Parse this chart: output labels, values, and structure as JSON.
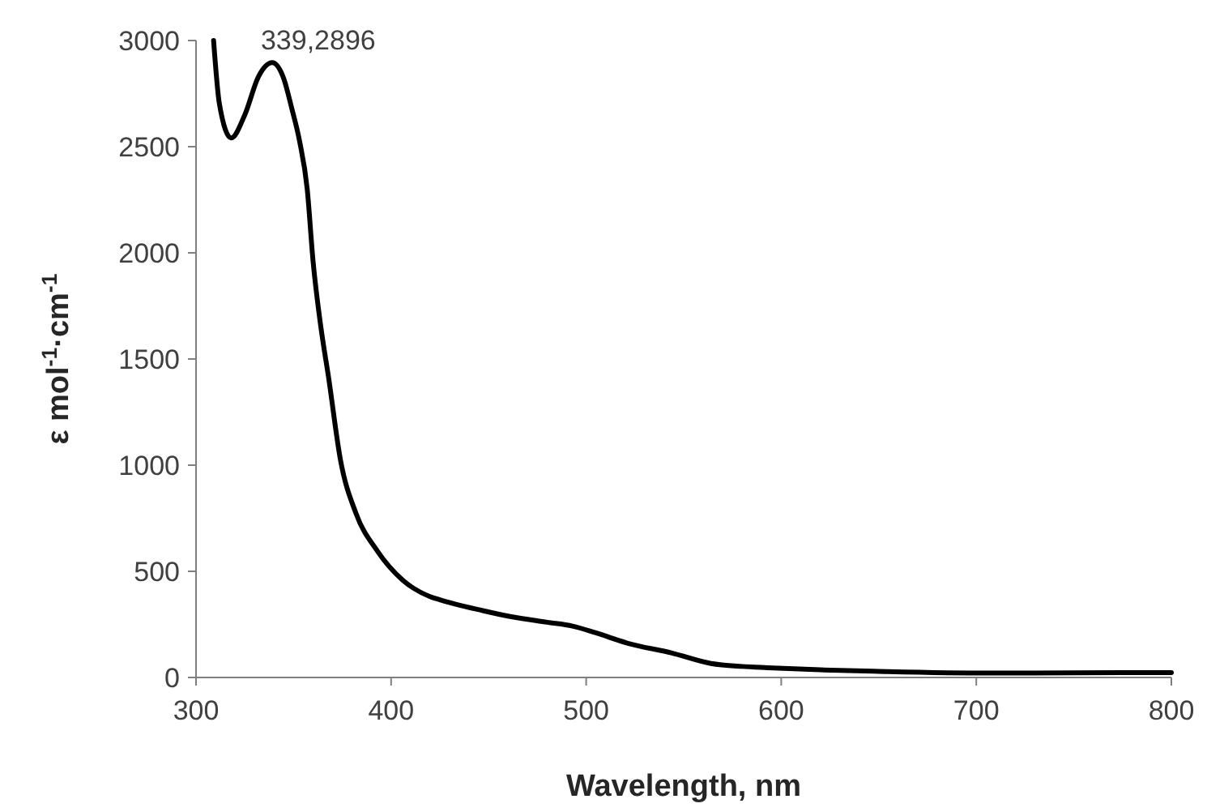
{
  "chart_data": {
    "type": "line",
    "xlabel": "Wavelength, nm",
    "ylabel": "ε mol$^{-1}$·cm$^{-1}$",
    "annotations": [
      {
        "text": "339,2896",
        "x": 339,
        "y": 2896
      }
    ],
    "series": [
      {
        "color": "#000000",
        "x": [
          309,
          312,
          318,
          325,
          332,
          339,
          345,
          349,
          353,
          357,
          360,
          364,
          368,
          374,
          382,
          393,
          406,
          420,
          425,
          447,
          461,
          480,
          493,
          505,
          521,
          544,
          564,
          580,
          593,
          620,
          650,
          707,
          750,
          800
        ],
        "values": [
          3000,
          2700,
          2541,
          2650,
          2830,
          2896,
          2820,
          2683,
          2530,
          2300,
          1960,
          1650,
          1410,
          1027,
          773,
          595,
          458,
          381,
          366,
          315,
          287,
          260,
          242,
          210,
          162,
          115,
          66,
          52,
          46,
          36,
          29,
          21,
          22,
          23
        ]
      }
    ],
    "xlim": [
      300,
      800
    ],
    "xticks": [
      300,
      400,
      500,
      600,
      700,
      800
    ],
    "ylim": [
      0,
      3000
    ],
    "yticks": [
      0,
      500,
      1000,
      1500,
      2000,
      2500,
      3000
    ],
    "marker": "none",
    "line_style": "solid"
  }
}
